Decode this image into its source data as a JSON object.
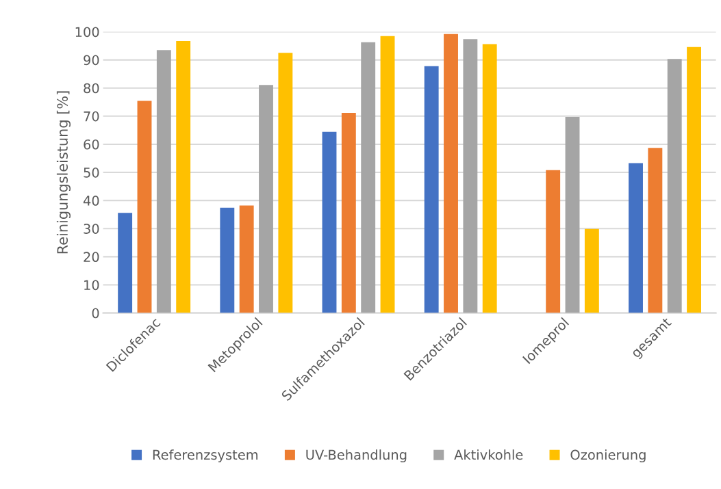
{
  "chart_data": {
    "type": "bar",
    "ylabel": "Reinigungsleistung [%]",
    "categories": [
      "Diclofenac",
      "Metoprolol",
      "Sulfamethoxazol",
      "Benzotriazol",
      "Iomeprol",
      "gesamt"
    ],
    "series": [
      {
        "name": "Referenzsystem",
        "color": "#4472c4",
        "values": [
          35.6,
          37.4,
          64.4,
          87.8,
          null,
          53.3
        ]
      },
      {
        "name": "UV-Behandlung",
        "color": "#ed7d31",
        "values": [
          75.4,
          38.2,
          71.2,
          99.2,
          50.8,
          58.7
        ]
      },
      {
        "name": "Aktivkohle",
        "color": "#a5a5a5",
        "values": [
          93.5,
          81.1,
          96.3,
          97.4,
          69.7,
          90.3
        ]
      },
      {
        "name": "Ozonierung",
        "color": "#ffc000",
        "values": [
          96.7,
          92.5,
          98.5,
          95.6,
          29.9,
          94.6
        ]
      }
    ],
    "ylim": [
      0,
      100
    ],
    "yticks": [
      0,
      10,
      20,
      30,
      40,
      50,
      60,
      70,
      80,
      90,
      100
    ],
    "grid": "y",
    "legend": "bottom"
  }
}
